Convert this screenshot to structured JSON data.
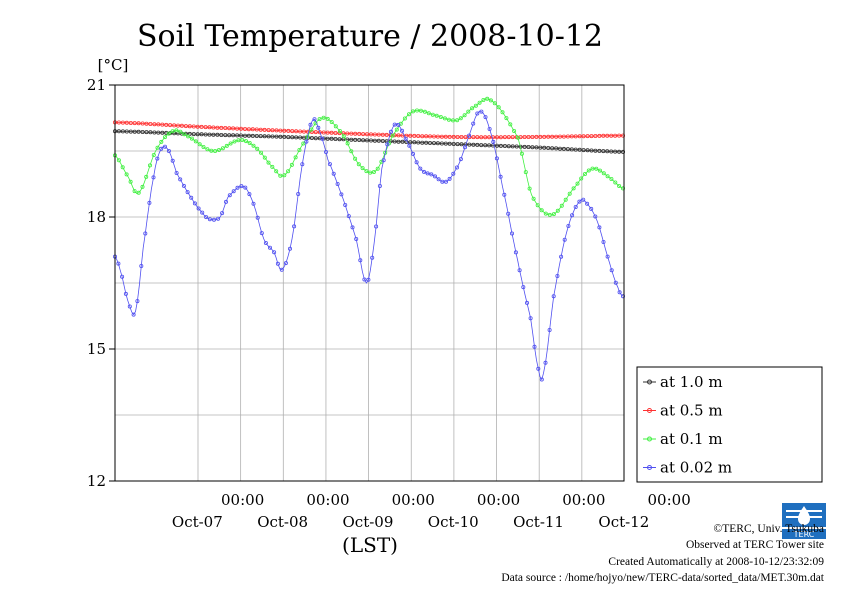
{
  "chart_data": {
    "type": "line",
    "title": "Soil Temperature / 2008-10-12",
    "ylabel": "[°C]",
    "xlabel": "(LST)",
    "ylim": [
      12,
      21
    ],
    "yticks": [
      "21",
      "18",
      "15",
      "12"
    ],
    "ytick_values": [
      21,
      18,
      15,
      12
    ],
    "x_range_days": [
      0,
      6
    ],
    "x_ticks": [
      {
        "time": "00:00",
        "date": "Oct-07",
        "day": 1
      },
      {
        "time": "00:00",
        "date": "Oct-08",
        "day": 2
      },
      {
        "time": "00:00",
        "date": "Oct-09",
        "day": 3
      },
      {
        "time": "00:00",
        "date": "Oct-10",
        "day": 4
      },
      {
        "time": "00:00",
        "date": "Oct-11",
        "day": 5
      },
      {
        "time": "00:00",
        "date": "Oct-12",
        "day": 6
      }
    ],
    "grid": true,
    "legend_position": "right",
    "series": [
      {
        "name": "at 1.0 m",
        "color": "#303030",
        "points": [
          [
            0,
            19.95
          ],
          [
            1,
            19.88
          ],
          [
            2,
            19.82
          ],
          [
            3,
            19.74
          ],
          [
            4,
            19.66
          ],
          [
            5,
            19.58
          ],
          [
            6,
            19.48
          ]
        ]
      },
      {
        "name": "at 0.5 m",
        "color": "#ff3030",
        "points": [
          [
            0,
            20.15
          ],
          [
            1,
            20.05
          ],
          [
            2,
            19.96
          ],
          [
            3,
            19.88
          ],
          [
            4,
            19.82
          ],
          [
            5,
            19.82
          ],
          [
            6,
            19.85
          ]
        ]
      },
      {
        "name": "at 0.1 m",
        "color": "#40f040",
        "points": [
          [
            0,
            19.4
          ],
          [
            0.2,
            18.9
          ],
          [
            0.35,
            18.55
          ],
          [
            0.6,
            19.5
          ],
          [
            0.85,
            19.95
          ],
          [
            1.05,
            19.85
          ],
          [
            1.45,
            19.5
          ],
          [
            1.85,
            19.75
          ],
          [
            2.1,
            19.55
          ],
          [
            2.35,
            19.1
          ],
          [
            2.5,
            18.95
          ],
          [
            2.75,
            19.6
          ],
          [
            3.05,
            20.25
          ],
          [
            3.35,
            19.9
          ],
          [
            3.6,
            19.2
          ],
          [
            3.85,
            19.05
          ],
          [
            4.1,
            19.85
          ],
          [
            4.4,
            20.4
          ],
          [
            4.75,
            20.3
          ],
          [
            5.05,
            20.2
          ],
          [
            5.3,
            20.5
          ],
          [
            5.55,
            20.65
          ],
          [
            5.95,
            19.8
          ],
          [
            6.15,
            18.5
          ],
          [
            6.45,
            18.05
          ],
          [
            6.8,
            18.7
          ],
          [
            7.05,
            19.1
          ],
          [
            7.3,
            18.9
          ],
          [
            7.5,
            18.65
          ]
        ]
      },
      {
        "name": "at 0.02 m",
        "color": "#5050f0",
        "points": [
          [
            0,
            17.1
          ],
          [
            0.1,
            16.8
          ],
          [
            0.25,
            16.1
          ],
          [
            0.4,
            15.85
          ],
          [
            0.55,
            17.3
          ],
          [
            0.75,
            18.9
          ],
          [
            0.9,
            19.55
          ],
          [
            1.05,
            19.5
          ],
          [
            1.2,
            19.0
          ],
          [
            1.45,
            18.5
          ],
          [
            1.7,
            18.1
          ],
          [
            1.85,
            17.95
          ],
          [
            2.05,
            18.0
          ],
          [
            2.2,
            18.45
          ],
          [
            2.5,
            18.7
          ],
          [
            2.7,
            18.3
          ],
          [
            2.9,
            17.5
          ],
          [
            3.1,
            17.2
          ],
          [
            3.25,
            16.8
          ],
          [
            3.45,
            17.5
          ],
          [
            3.65,
            19.2
          ],
          [
            3.85,
            20.2
          ],
          [
            4.0,
            19.9
          ],
          [
            4.15,
            19.3
          ],
          [
            4.45,
            18.4
          ],
          [
            4.7,
            17.5
          ],
          [
            4.9,
            16.5
          ],
          [
            5.05,
            17.4
          ],
          [
            5.2,
            19.1
          ],
          [
            5.45,
            20.1
          ],
          [
            5.7,
            19.7
          ],
          [
            5.95,
            19.1
          ],
          [
            6.2,
            18.95
          ],
          [
            6.45,
            18.8
          ],
          [
            6.7,
            19.2
          ],
          [
            6.9,
            19.85
          ],
          [
            7.1,
            20.4
          ],
          [
            7.3,
            20.0
          ],
          [
            7.55,
            18.7
          ],
          [
            7.85,
            17.0
          ],
          [
            8.1,
            15.7
          ],
          [
            8.25,
            14.55
          ],
          [
            8.35,
            14.45
          ],
          [
            8.55,
            16.2
          ],
          [
            8.8,
            17.65
          ],
          [
            9.05,
            18.35
          ],
          [
            9.2,
            18.3
          ],
          [
            9.4,
            17.9
          ],
          [
            9.6,
            17.1
          ],
          [
            9.8,
            16.4
          ],
          [
            9.9,
            16.2
          ]
        ]
      }
    ]
  },
  "footer": {
    "copyright": "©TERC, Univ. Tsukuba",
    "site": "Observed at TERC Tower site",
    "created": "Created Automatically at 2008-10-12/23:32:09",
    "source": "Data source : /home/hojyo/new/TERC-data/sorted_data/MET.30m.dat"
  },
  "logo_text": "TERC"
}
